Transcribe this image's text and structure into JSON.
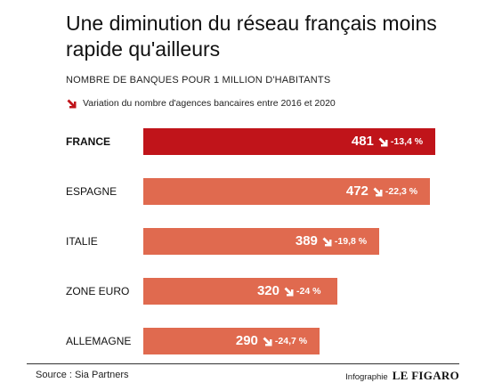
{
  "header": {
    "title": "Une diminution du réseau français moins rapide qu'ailleurs",
    "subtitle": "NOMBRE DE BANQUES POUR 1 MILLION D'HABITANTS",
    "legend_label": "Variation du nombre d'agences bancaires entre 2016 et 2020"
  },
  "chart_data": {
    "type": "bar",
    "orientation": "horizontal",
    "title": "Une diminution du réseau français moins rapide qu'ailleurs",
    "subtitle": "NOMBRE DE BANQUES POUR 1 MILLION D'HABITANTS",
    "categories": [
      "FRANCE",
      "ESPAGNE",
      "ITALIE",
      "ZONE EURO",
      "ALLEMAGNE"
    ],
    "values": [
      481,
      472,
      389,
      320,
      290
    ],
    "variations": [
      "-13,4 %",
      "-22,3 %",
      "-19,8 %",
      "-24 %",
      "-24,7 %"
    ],
    "highlight": "FRANCE",
    "xlim": [
      0,
      481
    ],
    "grid": false,
    "colors": {
      "highlight": "#c0141a",
      "bar": "#e06a4f",
      "arrow_legend": "#c0141a",
      "label_text": "#ffffff"
    }
  },
  "footer": {
    "source": "Source : Sia Partners",
    "credit_label": "Infographie",
    "credit_logo": "LE FIGARO"
  }
}
